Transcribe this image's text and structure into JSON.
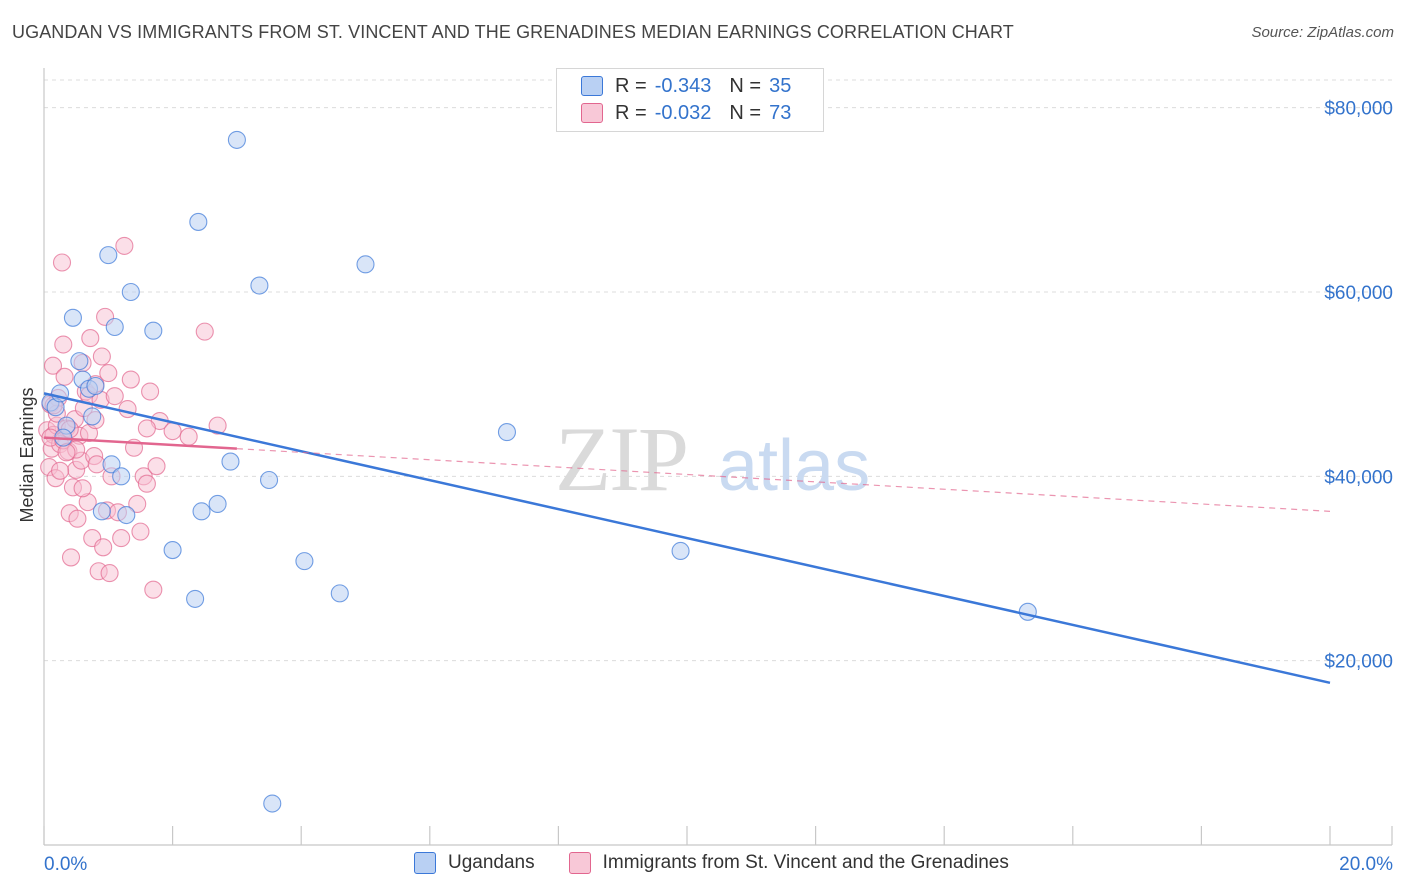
{
  "title": "UGANDAN VS IMMIGRANTS FROM ST. VINCENT AND THE GRENADINES MEDIAN EARNINGS CORRELATION CHART",
  "source": "Source: ZipAtlas.com",
  "colors": {
    "blue": "#3b78d8",
    "blue_fill": "#b9d0f3",
    "pink": "#e2668f",
    "pink_fill": "#f8bfd2",
    "axis_label": "#3373cc",
    "grid": "#dcdcdc"
  },
  "legend": {
    "rows": [
      {
        "r_label": "R =",
        "r_value": "-0.343",
        "n_label": "N =",
        "n_value": "35"
      },
      {
        "r_label": "R =",
        "r_value": "-0.032",
        "n_label": "N =",
        "n_value": "73"
      }
    ]
  },
  "bottom_legend": {
    "series1": "Ugandans",
    "series2": "Immigrants from St. Vincent and the Grenadines"
  },
  "chart_data": {
    "type": "scatter",
    "title": "UGANDAN VS IMMIGRANTS FROM ST. VINCENT AND THE GRENADINES MEDIAN EARNINGS CORRELATION CHART",
    "xlabel": "",
    "ylabel": "Median Earnings",
    "xlim": [
      0,
      20
    ],
    "ylim": [
      0,
      83000
    ],
    "x_tick_labels": [
      "0.0%",
      "20.0%"
    ],
    "y_ticks": [
      20000,
      40000,
      60000,
      80000
    ],
    "y_tick_labels": [
      "$20,000",
      "$40,000",
      "$60,000",
      "$80,000"
    ],
    "grid": true,
    "watermark": "ZIPatlas",
    "series": [
      {
        "name": "Ugandans",
        "color": "#3b78d8",
        "r": -0.343,
        "n": 35,
        "trend": {
          "x": [
            0,
            20
          ],
          "y": [
            49000,
            17600
          ],
          "extrapolated_dashed": false
        },
        "points": [
          [
            0.1,
            48000
          ],
          [
            0.18,
            47500
          ],
          [
            0.25,
            49000
          ],
          [
            0.35,
            45500
          ],
          [
            0.45,
            57200
          ],
          [
            0.55,
            52500
          ],
          [
            0.6,
            50500
          ],
          [
            0.7,
            49500
          ],
          [
            0.75,
            46500
          ],
          [
            0.8,
            49800
          ],
          [
            0.9,
            36200
          ],
          [
            1.0,
            64000
          ],
          [
            1.05,
            41300
          ],
          [
            1.1,
            56200
          ],
          [
            1.2,
            40000
          ],
          [
            1.28,
            35800
          ],
          [
            1.35,
            60000
          ],
          [
            1.7,
            55800
          ],
          [
            2.0,
            32000
          ],
          [
            2.35,
            26700
          ],
          [
            2.4,
            67600
          ],
          [
            2.45,
            36200
          ],
          [
            2.7,
            37000
          ],
          [
            2.9,
            41600
          ],
          [
            3.0,
            76500
          ],
          [
            3.35,
            60700
          ],
          [
            3.5,
            39600
          ],
          [
            3.55,
            4500
          ],
          [
            4.05,
            30800
          ],
          [
            4.6,
            27300
          ],
          [
            5.0,
            63000
          ],
          [
            7.2,
            44800
          ],
          [
            9.9,
            31900
          ],
          [
            15.3,
            25300
          ],
          [
            0.3,
            44200
          ]
        ]
      },
      {
        "name": "Immigrants from St. Vincent and the Grenadines",
        "color": "#e2668f",
        "r": -0.032,
        "n": 73,
        "trend": {
          "x": [
            0,
            3.0
          ],
          "y": [
            44200,
            43000
          ],
          "dashed_to": {
            "x": 20,
            "y": 36200
          }
        },
        "points": [
          [
            0.05,
            45000
          ],
          [
            0.08,
            41000
          ],
          [
            0.1,
            47800
          ],
          [
            0.12,
            43000
          ],
          [
            0.14,
            52000
          ],
          [
            0.15,
            44500
          ],
          [
            0.18,
            39800
          ],
          [
            0.2,
            45500
          ],
          [
            0.22,
            48500
          ],
          [
            0.25,
            43500
          ],
          [
            0.28,
            63200
          ],
          [
            0.3,
            54300
          ],
          [
            0.32,
            50800
          ],
          [
            0.35,
            45200
          ],
          [
            0.38,
            42700
          ],
          [
            0.4,
            36000
          ],
          [
            0.42,
            31200
          ],
          [
            0.45,
            38800
          ],
          [
            0.48,
            46200
          ],
          [
            0.5,
            40700
          ],
          [
            0.52,
            35400
          ],
          [
            0.55,
            44400
          ],
          [
            0.58,
            41700
          ],
          [
            0.6,
            52300
          ],
          [
            0.62,
            47400
          ],
          [
            0.65,
            49200
          ],
          [
            0.68,
            37200
          ],
          [
            0.7,
            48800
          ],
          [
            0.72,
            55000
          ],
          [
            0.75,
            33300
          ],
          [
            0.78,
            42200
          ],
          [
            0.8,
            50000
          ],
          [
            0.82,
            41300
          ],
          [
            0.85,
            29700
          ],
          [
            0.88,
            48300
          ],
          [
            0.9,
            53000
          ],
          [
            0.92,
            32300
          ],
          [
            0.95,
            57300
          ],
          [
            0.98,
            36300
          ],
          [
            1.0,
            51200
          ],
          [
            1.02,
            29500
          ],
          [
            1.05,
            40000
          ],
          [
            1.1,
            48700
          ],
          [
            1.15,
            36100
          ],
          [
            1.2,
            33300
          ],
          [
            1.25,
            65000
          ],
          [
            1.3,
            47300
          ],
          [
            1.35,
            50500
          ],
          [
            1.4,
            43100
          ],
          [
            1.45,
            37000
          ],
          [
            1.5,
            34000
          ],
          [
            1.55,
            40000
          ],
          [
            1.6,
            39200
          ],
          [
            1.65,
            49200
          ],
          [
            1.7,
            27700
          ],
          [
            1.75,
            41100
          ],
          [
            1.8,
            46000
          ],
          [
            2.0,
            44900
          ],
          [
            2.25,
            44300
          ],
          [
            2.5,
            55700
          ],
          [
            2.7,
            45500
          ],
          [
            0.1,
            44200
          ],
          [
            0.2,
            46800
          ],
          [
            0.3,
            43900
          ],
          [
            0.4,
            45100
          ],
          [
            0.5,
            42900
          ],
          [
            0.6,
            38700
          ],
          [
            0.7,
            44700
          ],
          [
            0.8,
            46100
          ],
          [
            0.15,
            47700
          ],
          [
            0.25,
            40600
          ],
          [
            0.35,
            42600
          ],
          [
            1.6,
            45200
          ]
        ]
      }
    ]
  }
}
